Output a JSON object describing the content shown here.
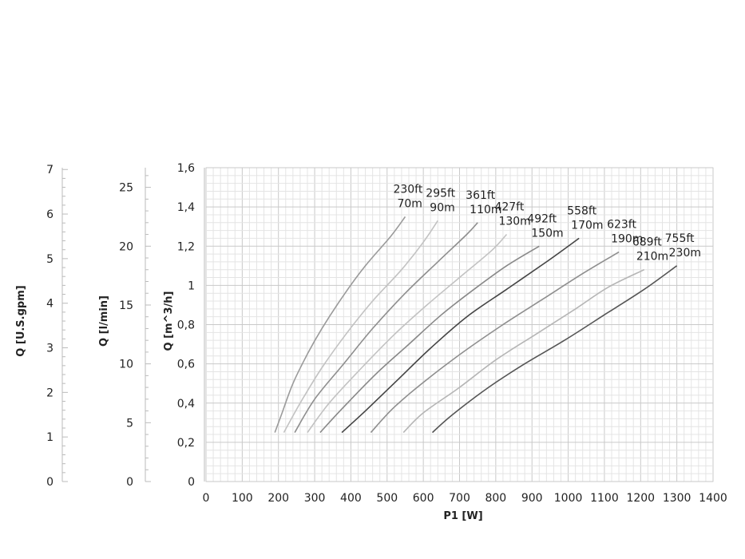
{
  "chart_data": {
    "type": "line",
    "xlabel": "P1 [W]",
    "xlim": [
      0,
      1400
    ],
    "x_ticks": [
      "0",
      "100",
      "200",
      "300",
      "400",
      "500",
      "600",
      "700",
      "800",
      "900",
      "1000",
      "1100",
      "1200",
      "1300",
      "1400"
    ],
    "ylim": [
      0,
      1.6
    ],
    "ylabel": "Q [m^3/h]",
    "y_ticks": [
      "0",
      "0,2",
      "0,4",
      "0,6",
      "0,8",
      "1",
      "1,2",
      "1,4",
      "1,6"
    ],
    "secondary_axes": [
      {
        "label": "Q [l/min]",
        "lim": [
          0,
          26.67
        ],
        "ticks": [
          "0",
          "5",
          "10",
          "15",
          "20",
          "25"
        ]
      },
      {
        "label": "Q [U.S.gpm]",
        "lim": [
          0,
          7.04
        ],
        "ticks": [
          "0",
          "1",
          "2",
          "3",
          "4",
          "5",
          "6",
          "7"
        ]
      }
    ],
    "grid": true,
    "series": [
      {
        "name": "230ft 70m",
        "label_ft": "230ft",
        "label_m": "70m",
        "color": "#9a9a9a",
        "points": [
          [
            190,
            0.25
          ],
          [
            210,
            0.35
          ],
          [
            240,
            0.5
          ],
          [
            280,
            0.65
          ],
          [
            320,
            0.78
          ],
          [
            380,
            0.95
          ],
          [
            440,
            1.1
          ],
          [
            510,
            1.25
          ],
          [
            550,
            1.35
          ]
        ]
      },
      {
        "name": "295ft 90m",
        "label_ft": "295ft",
        "label_m": "90m",
        "color": "#c2c2c2",
        "points": [
          [
            215,
            0.25
          ],
          [
            260,
            0.4
          ],
          [
            320,
            0.58
          ],
          [
            390,
            0.76
          ],
          [
            460,
            0.92
          ],
          [
            540,
            1.08
          ],
          [
            600,
            1.22
          ],
          [
            640,
            1.33
          ]
        ]
      },
      {
        "name": "361ft 110m",
        "label_ft": "361ft",
        "label_m": "110m",
        "color": "#8e8e8e",
        "points": [
          [
            245,
            0.25
          ],
          [
            300,
            0.42
          ],
          [
            380,
            0.6
          ],
          [
            460,
            0.78
          ],
          [
            550,
            0.96
          ],
          [
            640,
            1.12
          ],
          [
            720,
            1.26
          ],
          [
            750,
            1.32
          ]
        ]
      },
      {
        "name": "427ft 130m",
        "label_ft": "427ft",
        "label_m": "130m",
        "color": "#c2c2c2",
        "points": [
          [
            280,
            0.25
          ],
          [
            340,
            0.4
          ],
          [
            430,
            0.58
          ],
          [
            520,
            0.75
          ],
          [
            610,
            0.9
          ],
          [
            700,
            1.04
          ],
          [
            790,
            1.18
          ],
          [
            830,
            1.26
          ]
        ]
      },
      {
        "name": "492ft 150m",
        "label_ft": "492ft",
        "label_m": "150m",
        "color": "#888888",
        "points": [
          [
            315,
            0.25
          ],
          [
            380,
            0.38
          ],
          [
            470,
            0.55
          ],
          [
            560,
            0.7
          ],
          [
            650,
            0.85
          ],
          [
            740,
            0.98
          ],
          [
            830,
            1.1
          ],
          [
            920,
            1.2
          ]
        ]
      },
      {
        "name": "558ft 170m",
        "label_ft": "558ft",
        "label_m": "170m",
        "color": "#444444",
        "points": [
          [
            375,
            0.25
          ],
          [
            440,
            0.36
          ],
          [
            530,
            0.52
          ],
          [
            620,
            0.68
          ],
          [
            720,
            0.84
          ],
          [
            830,
            0.98
          ],
          [
            940,
            1.12
          ],
          [
            1030,
            1.24
          ]
        ]
      },
      {
        "name": "623ft 190m",
        "label_ft": "623ft",
        "label_m": "190m",
        "color": "#8e8e8e",
        "points": [
          [
            455,
            0.25
          ],
          [
            520,
            0.38
          ],
          [
            610,
            0.52
          ],
          [
            710,
            0.66
          ],
          [
            820,
            0.8
          ],
          [
            930,
            0.93
          ],
          [
            1040,
            1.06
          ],
          [
            1140,
            1.17
          ]
        ]
      },
      {
        "name": "689ft 210m",
        "label_ft": "689ft",
        "label_m": "210m",
        "color": "#b5b5b5",
        "points": [
          [
            545,
            0.25
          ],
          [
            600,
            0.35
          ],
          [
            700,
            0.48
          ],
          [
            800,
            0.62
          ],
          [
            910,
            0.75
          ],
          [
            1020,
            0.88
          ],
          [
            1110,
            0.99
          ],
          [
            1210,
            1.08
          ]
        ]
      },
      {
        "name": "755ft 230m",
        "label_ft": "755ft",
        "label_m": "230m",
        "color": "#555555",
        "points": [
          [
            625,
            0.25
          ],
          [
            680,
            0.34
          ],
          [
            780,
            0.48
          ],
          [
            880,
            0.6
          ],
          [
            990,
            0.72
          ],
          [
            1100,
            0.85
          ],
          [
            1210,
            0.98
          ],
          [
            1300,
            1.1
          ]
        ]
      }
    ]
  }
}
